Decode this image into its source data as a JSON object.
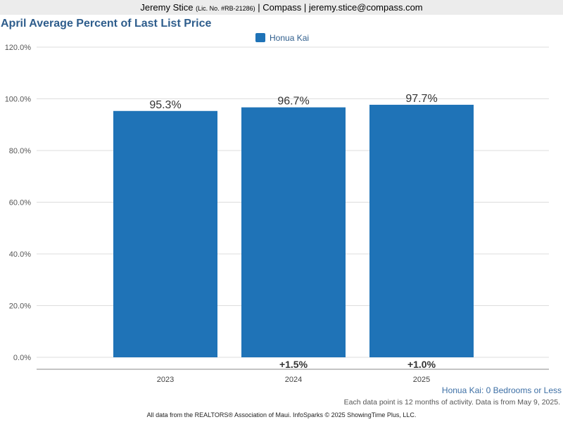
{
  "header": {
    "agent_name": "Jeremy Stice",
    "license": "(Lic. No. #RB-21286)",
    "separator": "|",
    "brokerage": "Compass",
    "email": "jeremy.stice@compass.com"
  },
  "chart_data": {
    "type": "bar",
    "title": "April Average Percent of Last List Price",
    "categories": [
      "2023",
      "2024",
      "2025"
    ],
    "series": [
      {
        "name": "Honua Kai",
        "values": [
          95.3,
          96.7,
          97.7
        ],
        "color": "#1f73b7"
      }
    ],
    "data_labels": [
      "95.3%",
      "96.7%",
      "97.7%"
    ],
    "change_labels": [
      "",
      "+1.5%",
      "+1.0%"
    ],
    "y_ticks": [
      0,
      20,
      40,
      60,
      80,
      100,
      120
    ],
    "y_tick_labels": [
      "0.0%",
      "20.0%",
      "40.0%",
      "60.0%",
      "80.0%",
      "100.0%",
      "120.0%"
    ],
    "ylim": [
      0,
      120
    ],
    "grid": true,
    "legend_position": "top-center",
    "xlabel": "",
    "ylabel": ""
  },
  "subset_label": "Honua Kai: 0 Bedrooms or Less",
  "activity_note": "Each data point is 12 months of activity. Data is from May 9, 2025.",
  "footer_note": "All data from the REALTORS® Association of Maui. InfoSparks © 2025 ShowingTime Plus, LLC."
}
